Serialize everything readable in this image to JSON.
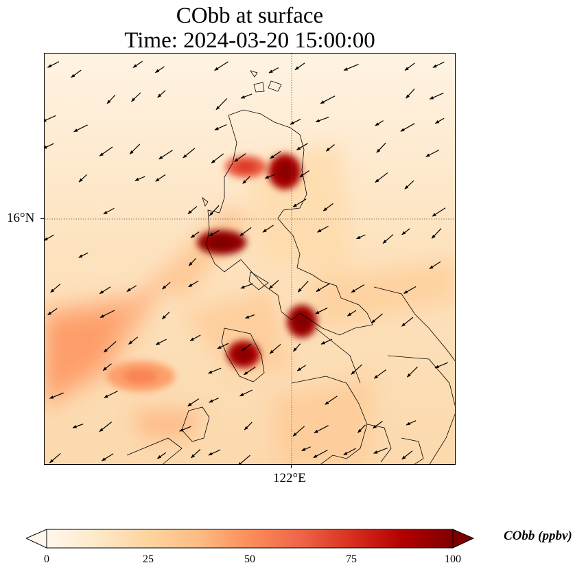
{
  "title": {
    "line1": "CObb at surface",
    "line2": "Time: 2024-03-20 15:00:00"
  },
  "map": {
    "lat_label": "16°N",
    "lon_label": "122°E",
    "gridlines": "dotted",
    "coastline_color": "#000000",
    "wind_vectors": "prevailing from northeast to southwest"
  },
  "colorbar": {
    "label": "CObb (ppbv)",
    "colormap": "OrRd",
    "colors": [
      "#fff7ec",
      "#fee8c8",
      "#fdd49e",
      "#fdbb84",
      "#fc8d59",
      "#ef6548",
      "#d7301f",
      "#b30000",
      "#7f0000"
    ],
    "min": 0,
    "max": 100,
    "extend": "both",
    "ticks": [
      "0",
      "25",
      "50",
      "75",
      "100"
    ]
  },
  "chart_data": {
    "type": "heatmap",
    "title": "CObb at surface\nTime: 2024-03-20 15:00:00",
    "variable": "CObb",
    "units": "ppbv",
    "xlabel": "",
    "ylabel": "",
    "x_ticks": [
      "122°E"
    ],
    "y_ticks": [
      "16°N"
    ],
    "color_range": [
      0,
      100
    ],
    "hotspots": [
      {
        "name": "northern Luzon east cluster",
        "value": 90
      },
      {
        "name": "northern Luzon west cluster",
        "value": 65
      },
      {
        "name": "central Luzon cluster",
        "value": 95
      },
      {
        "name": "Bicol peninsula cluster",
        "value": 92
      },
      {
        "name": "Mindoro cluster",
        "value": 90
      },
      {
        "name": "offshore southwest plume",
        "value": 45
      }
    ]
  }
}
